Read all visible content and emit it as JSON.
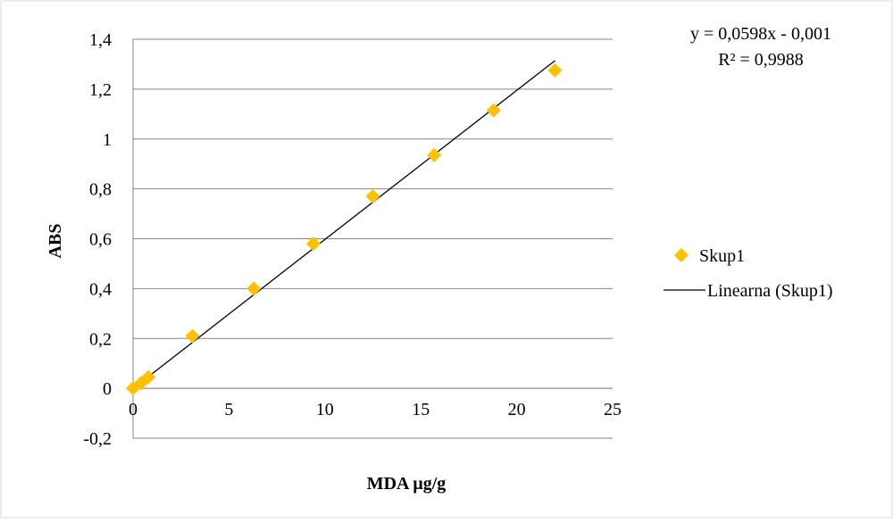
{
  "chart_data": {
    "type": "scatter",
    "xlabel": "MDA μg/g",
    "ylabel": "ABS",
    "xlim": [
      0,
      25
    ],
    "ylim": [
      -0.2,
      1.4
    ],
    "xticks": [
      0,
      5,
      10,
      15,
      20,
      25
    ],
    "yticks": [
      -0.2,
      0,
      0.2,
      0.4,
      0.6,
      0.8,
      1,
      1.2,
      1.4
    ],
    "xtick_labels": [
      "0",
      "5",
      "10",
      "15",
      "20",
      "25"
    ],
    "ytick_labels": [
      "-0,2",
      "0",
      "0,2",
      "0,4",
      "0,6",
      "0,8",
      "1",
      "1,2",
      "1,4"
    ],
    "grid": "horizontal major gridlines",
    "legend_position": "right",
    "series": [
      {
        "name": "Skup1",
        "marker": "diamond",
        "color": "#FFC000",
        "points": [
          {
            "x": 0,
            "y": 0
          },
          {
            "x": 0.4,
            "y": 0.02
          },
          {
            "x": 0.8,
            "y": 0.045
          },
          {
            "x": 3.1,
            "y": 0.21
          },
          {
            "x": 6.3,
            "y": 0.4
          },
          {
            "x": 9.4,
            "y": 0.58
          },
          {
            "x": 12.5,
            "y": 0.77
          },
          {
            "x": 15.7,
            "y": 0.935
          },
          {
            "x": 18.8,
            "y": 1.115
          },
          {
            "x": 22,
            "y": 1.275
          }
        ]
      }
    ],
    "trendline": {
      "name": "Linearna (Skup1)",
      "color": "#000000",
      "slope": 0.0598,
      "intercept": -0.001,
      "x_range": [
        0,
        22
      ],
      "equation_label": "y = 0,0598x - 0,001",
      "r2_label": "R² = 0,9988"
    }
  }
}
